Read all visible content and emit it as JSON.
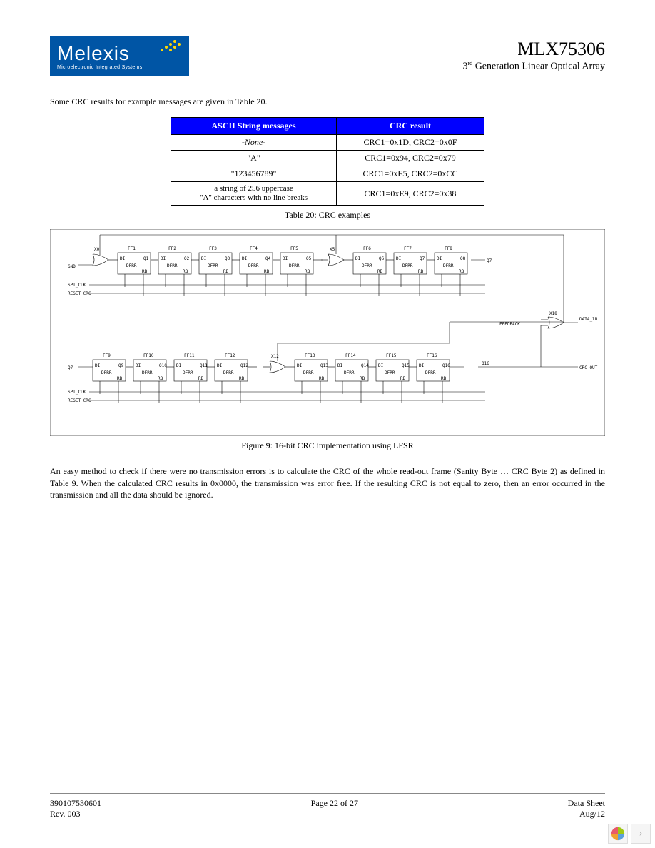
{
  "logo": {
    "company": "Melexis",
    "tagline": "Microelectronic Integrated Systems",
    "bg_color": "#0055a5",
    "dot_color": "#ffd700"
  },
  "header": {
    "part_number": "MLX75306",
    "subtitle_prefix": "3",
    "subtitle_sup": "rd",
    "subtitle_rest": " Generation Linear Optical Array"
  },
  "intro": "Some CRC results for example messages are given in Table 20.",
  "table": {
    "header_bg": "#0000ff",
    "columns": [
      "ASCII String messages",
      "CRC result"
    ],
    "rows": [
      {
        "msg": "-None-",
        "italic": true,
        "res": "CRC1=0x1D, CRC2=0x0F"
      },
      {
        "msg": "\"A\"",
        "italic": false,
        "res": "CRC1=0x94, CRC2=0x79"
      },
      {
        "msg": "\"123456789\"",
        "italic": false,
        "res": "CRC1=0xE5, CRC2=0xCC"
      },
      {
        "msg_line1": "a string of 256 uppercase",
        "msg_line2": "\"A\" characters with no line breaks",
        "italic": false,
        "res": "CRC1=0xE9, CRC2=0x38"
      }
    ],
    "caption": "Table 20: CRC examples"
  },
  "diagram": {
    "top_row": {
      "gate0": "X0",
      "ffs": [
        "FF1",
        "FF2",
        "FF3",
        "FF4",
        "FF5"
      ],
      "gate5": "X5",
      "ffs2": [
        "FF6",
        "FF7",
        "FF8"
      ]
    },
    "bot_row": {
      "ffs": [
        "FF9",
        "FF10",
        "FF11",
        "FF12"
      ],
      "gate12": "X12",
      "ffs2": [
        "FF13",
        "FF14",
        "FF15",
        "FF16"
      ],
      "gate_out": "X18"
    },
    "labels": {
      "gnd": "GND",
      "spi_clk": "SPI_CLK",
      "reset_crc": "RESET_CRC",
      "feedback": "FEEDBACK",
      "data_in": "DATA_IN",
      "crc_out": "CRC_OUT",
      "q7": "Q7",
      "q16": "Q16"
    },
    "ff_ports": {
      "d": "DI",
      "q": "Q",
      "type": "DFRR",
      "r": "RB"
    },
    "fig_caption": "Figure 9: 16-bit CRC implementation using LFSR"
  },
  "body": "An easy method to check if there were no transmission errors is to calculate the CRC of the whole read-out frame (Sanity Byte … CRC Byte 2) as defined in Table 9. When the calculated CRC results in 0x0000, the transmission was error free. If the resulting CRC is not equal to zero, then an error occurred in the transmission and all the data should be ignored.",
  "footer": {
    "left_top": "390107530601",
    "left_bot": "Rev. 003",
    "center": "Page 22 of 27",
    "right_top": "Data Sheet",
    "right_bot": "Aug/12"
  },
  "nav": {
    "logo_colors": [
      "#a0c814",
      "#5aa0dc",
      "#f0a030",
      "#e85a6a"
    ],
    "chevron": "›"
  }
}
